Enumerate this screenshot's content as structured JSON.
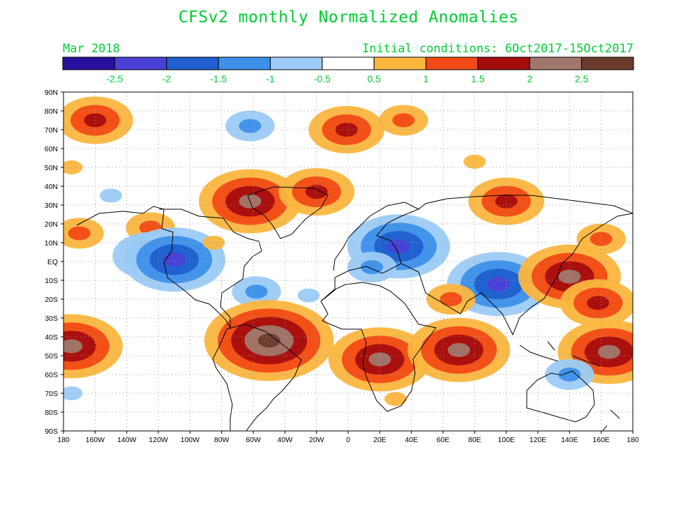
{
  "title": "CFSv2 monthly Normalized Anomalies",
  "valid_month": "Mar 2018",
  "initial_conditions": "Initial conditions: 6Oct2017-15Oct2017",
  "legend": {
    "colors": [
      "#2a0f9e",
      "#4b40d6",
      "#1f5fcf",
      "#3d90ea",
      "#9ccbf7",
      "#ffffff",
      "#fbb63e",
      "#f24a16",
      "#a50d0d",
      "#a0786b",
      "#6b3b2e"
    ],
    "labels": [
      "-2.5",
      "-2",
      "-1.5",
      "-1",
      "-0.5",
      "0.5",
      "1",
      "1.5",
      "2",
      "2.5"
    ]
  },
  "lat_labels": [
    "90N",
    "80N",
    "70N",
    "60N",
    "50N",
    "40N",
    "30N",
    "20N",
    "10N",
    "EQ",
    "10S",
    "20S",
    "30S",
    "40S",
    "50S",
    "60S",
    "70S",
    "80S",
    "90S"
  ],
  "lon_labels": [
    "180",
    "160W",
    "140W",
    "120W",
    "100W",
    "80W",
    "60W",
    "40W",
    "20W",
    "0",
    "20E",
    "40E",
    "60E",
    "80E",
    "100E",
    "120E",
    "140E",
    "160E",
    "180"
  ],
  "anomalies": [
    {
      "lon": -175,
      "lat": 50,
      "level": 0.6
    },
    {
      "lon": -160,
      "lat": 75,
      "level": 1.8
    },
    {
      "lon": -150,
      "lat": 35,
      "level": -0.6
    },
    {
      "lon": -170,
      "lat": 15,
      "level": 1.1
    },
    {
      "lon": -125,
      "lat": 18,
      "level": 1.3
    },
    {
      "lon": -125,
      "lat": 3,
      "level": -1.6
    },
    {
      "lon": -110,
      "lat": 1,
      "level": -2.1
    },
    {
      "lon": -62,
      "lat": 32,
      "level": 2.3
    },
    {
      "lon": -20,
      "lat": 37,
      "level": 1.5
    },
    {
      "lon": -1,
      "lat": 70,
      "level": 1.9
    },
    {
      "lon": 35,
      "lat": 75,
      "level": 1.2
    },
    {
      "lon": 80,
      "lat": 53,
      "level": 0.7
    },
    {
      "lon": -62,
      "lat": 72,
      "level": -1.2
    },
    {
      "lon": 32,
      "lat": 8,
      "level": -2.3
    },
    {
      "lon": 15,
      "lat": -3,
      "level": -1.3
    },
    {
      "lon": -58,
      "lat": -16,
      "level": -1.2
    },
    {
      "lon": 95,
      "lat": -12,
      "level": -2.2
    },
    {
      "lon": 65,
      "lat": -20,
      "level": 1.4
    },
    {
      "lon": 140,
      "lat": -8,
      "level": 2.1
    },
    {
      "lon": 158,
      "lat": -22,
      "level": 1.9
    },
    {
      "lon": 165,
      "lat": -48,
      "level": 2.4
    },
    {
      "lon": -175,
      "lat": -45,
      "level": 2.3
    },
    {
      "lon": -50,
      "lat": -42,
      "level": 2.5
    },
    {
      "lon": 20,
      "lat": -52,
      "level": 2.2
    },
    {
      "lon": 70,
      "lat": -47,
      "level": 2.3
    },
    {
      "lon": 160,
      "lat": 12,
      "level": 1.2
    },
    {
      "lon": 30,
      "lat": -73,
      "level": 0.6
    },
    {
      "lon": -175,
      "lat": -70,
      "level": -0.6
    },
    {
      "lon": 140,
      "lat": -60,
      "level": -1.1
    },
    {
      "lon": 100,
      "lat": 32,
      "level": 1.7
    },
    {
      "lon": -85,
      "lat": 10,
      "level": 0.8
    },
    {
      "lon": -25,
      "lat": -18,
      "level": -0.7
    }
  ]
}
